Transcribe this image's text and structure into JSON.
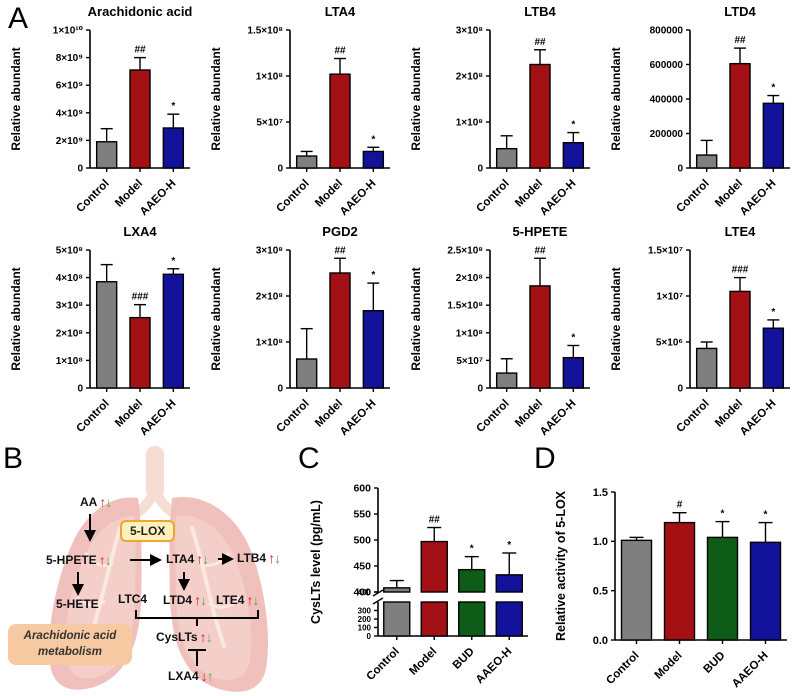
{
  "panels": {
    "a": "A",
    "b": "B",
    "c": "C",
    "d": "D"
  },
  "glyphs": {
    "up": "↑",
    "down": "↓"
  },
  "colors": {
    "control": "#7f7f7f",
    "model": "#a31114",
    "bud": "#0e5c17",
    "aaeo": "#12129b",
    "axis": "#000000",
    "trend_up_red": "#cf1f1b",
    "trend_down_green": "#5fa843",
    "lung_outer": "#efbdb9",
    "lung_inner": "#f4cfc9",
    "lung_branch": "#fae7e0",
    "trachea": "#f6dcd2",
    "enzyme_box_fill": "#fdf0bb",
    "enzyme_box_border": "#eda62e",
    "caption_box_fill": "#f7c9a2"
  },
  "chart_data": [
    {
      "type": "bar",
      "layout": "small",
      "title": "Arachidonic acid",
      "ylabel": "Relative abundant",
      "categories": [
        "Control",
        "Model",
        "AAEO-H"
      ],
      "values": [
        1900000000.0,
        7100000000.0,
        2900000000.0
      ],
      "errors": [
        950000000.0,
        900000000.0,
        1000000000.0
      ],
      "sig": [
        "",
        "##",
        "*"
      ],
      "ymax": 10000000000.0,
      "bar_colors": [
        "control",
        "model",
        "aaeo"
      ],
      "yticks": [
        {
          "v": 0,
          "label": "0"
        },
        {
          "v": 2000000000.0,
          "label": "2×10⁹"
        },
        {
          "v": 4000000000.0,
          "label": "4×10⁹"
        },
        {
          "v": 6000000000.0,
          "label": "6×10⁹"
        },
        {
          "v": 8000000000.0,
          "label": "8×10⁹"
        },
        {
          "v": 10000000000.0,
          "label": "1×10¹⁰"
        }
      ]
    },
    {
      "type": "bar",
      "layout": "small",
      "title": "LTA4",
      "ylabel": "Relative abundant",
      "categories": [
        "Control",
        "Model",
        "AAEO-H"
      ],
      "values": [
        13000000.0,
        102000000.0,
        18000000.0
      ],
      "errors": [
        5000000.0,
        17000000.0,
        4500000.0
      ],
      "sig": [
        "",
        "##",
        "*"
      ],
      "ymax": 150000000.0,
      "bar_colors": [
        "control",
        "model",
        "aaeo"
      ],
      "yticks": [
        {
          "v": 0,
          "label": "0"
        },
        {
          "v": 50000000.0,
          "label": "5×10⁷"
        },
        {
          "v": 100000000.0,
          "label": "1×10⁸"
        },
        {
          "v": 150000000.0,
          "label": "1.5×10⁸"
        }
      ]
    },
    {
      "type": "bar",
      "layout": "small",
      "title": "LTB4",
      "ylabel": "Relative abundant",
      "categories": [
        "Control",
        "Model",
        "AAEO-H"
      ],
      "values": [
        42000000.0,
        225000000.0,
        55000000.0
      ],
      "errors": [
        28000000.0,
        32000000.0,
        22000000.0
      ],
      "sig": [
        "",
        "##",
        "*"
      ],
      "ymax": 300000000.0,
      "bar_colors": [
        "control",
        "model",
        "aaeo"
      ],
      "yticks": [
        {
          "v": 0,
          "label": "0"
        },
        {
          "v": 100000000.0,
          "label": "1×10⁸"
        },
        {
          "v": 200000000.0,
          "label": "2×10⁸"
        },
        {
          "v": 300000000.0,
          "label": "3×10⁸"
        }
      ]
    },
    {
      "type": "bar",
      "layout": "small",
      "title": "LTD4",
      "ylabel": "Relative abundant",
      "categories": [
        "Control",
        "Model",
        "AAEO-H"
      ],
      "values": [
        75000,
        605000,
        375000
      ],
      "errors": [
        85000,
        90000,
        45000
      ],
      "sig": [
        "",
        "##",
        "*"
      ],
      "ymax": 800000,
      "bar_colors": [
        "control",
        "model",
        "aaeo"
      ],
      "yticks": [
        {
          "v": 0,
          "label": "0"
        },
        {
          "v": 200000,
          "label": "200000"
        },
        {
          "v": 400000,
          "label": "400000"
        },
        {
          "v": 600000,
          "label": "600000"
        },
        {
          "v": 800000,
          "label": "800000"
        }
      ]
    },
    {
      "type": "bar",
      "layout": "small",
      "title": "LXA4",
      "ylabel": "Relative abundant",
      "categories": [
        "Control",
        "Model",
        "AAEO-H"
      ],
      "values": [
        385000000.0,
        255000000.0,
        412000000.0
      ],
      "errors": [
        62000000.0,
        47000000.0,
        20000000.0
      ],
      "sig": [
        "",
        "###",
        "*"
      ],
      "ymax": 500000000.0,
      "bar_colors": [
        "control",
        "model",
        "aaeo"
      ],
      "yticks": [
        {
          "v": 0,
          "label": "0"
        },
        {
          "v": 100000000.0,
          "label": "1×10⁸"
        },
        {
          "v": 200000000.0,
          "label": "2×10⁸"
        },
        {
          "v": 300000000.0,
          "label": "3×10⁸"
        },
        {
          "v": 400000000.0,
          "label": "4×10⁸"
        },
        {
          "v": 500000000.0,
          "label": "5×10⁸"
        }
      ]
    },
    {
      "type": "bar",
      "layout": "small",
      "title": "PGD2",
      "ylabel": "Relative abundant",
      "categories": [
        "Control",
        "Model",
        "AAEO-H"
      ],
      "values": [
        63000000.0,
        250000000.0,
        168000000.0
      ],
      "errors": [
        66000000.0,
        32000000.0,
        60000000.0
      ],
      "sig": [
        "",
        "##",
        "*"
      ],
      "ymax": 300000000.0,
      "bar_colors": [
        "control",
        "model",
        "aaeo"
      ],
      "yticks": [
        {
          "v": 0,
          "label": "0"
        },
        {
          "v": 100000000.0,
          "label": "1×10⁸"
        },
        {
          "v": 200000000.0,
          "label": "2×10⁸"
        },
        {
          "v": 300000000.0,
          "label": "3×10⁸"
        }
      ]
    },
    {
      "type": "bar",
      "layout": "small",
      "title": "5-HPETE",
      "ylabel": "Relative abundant",
      "categories": [
        "Control",
        "Model",
        "AAEO-H"
      ],
      "values": [
        27000000.0,
        185000000.0,
        55000000.0
      ],
      "errors": [
        26000000.0,
        50000000.0,
        22000000.0
      ],
      "sig": [
        "",
        "##",
        "*"
      ],
      "ymax": 250000000.0,
      "bar_colors": [
        "control",
        "model",
        "aaeo"
      ],
      "yticks": [
        {
          "v": 0,
          "label": "0"
        },
        {
          "v": 50000000.0,
          "label": "5×10⁷"
        },
        {
          "v": 100000000.0,
          "label": "1×10⁸"
        },
        {
          "v": 150000000.0,
          "label": "1.5×10⁸"
        },
        {
          "v": 200000000.0,
          "label": "2×10⁸"
        },
        {
          "v": 250000000.0,
          "label": "2.5×10⁸"
        }
      ]
    },
    {
      "type": "bar",
      "layout": "small",
      "title": "LTE4",
      "ylabel": "Relative abundant",
      "categories": [
        "Control",
        "Model",
        "AAEO-H"
      ],
      "values": [
        4300000.0,
        10500000.0,
        6500000.0
      ],
      "errors": [
        700000.0,
        1500000.0,
        900000.0
      ],
      "sig": [
        "",
        "###",
        "*"
      ],
      "ymax": 15000000.0,
      "bar_colors": [
        "control",
        "model",
        "aaeo"
      ],
      "yticks": [
        {
          "v": 0,
          "label": "0"
        },
        {
          "v": 5000000.0,
          "label": "5×10⁶"
        },
        {
          "v": 10000000.0,
          "label": "1×10⁷"
        },
        {
          "v": 15000000.0,
          "label": "1.5×10⁷"
        }
      ]
    },
    {
      "type": "bar",
      "layout": "broken",
      "title": "",
      "ylabel": "CysLTs level (pg/mL)",
      "categories": [
        "Control",
        "Model",
        "BUD",
        "AAEO-H"
      ],
      "values": [
        408,
        497,
        443,
        433
      ],
      "errors": [
        14,
        27,
        25,
        42
      ],
      "sig": [
        "",
        "##",
        "*",
        "*"
      ],
      "bar_colors": [
        "control",
        "model",
        "bud",
        "aaeo"
      ],
      "upper_range": [
        400,
        600
      ],
      "lower_range": [
        0,
        400
      ],
      "yticks_upper": [
        {
          "v": 400,
          "label": "400"
        },
        {
          "v": 450,
          "label": "450"
        },
        {
          "v": 500,
          "label": "500"
        },
        {
          "v": 550,
          "label": "550"
        },
        {
          "v": 600,
          "label": "600"
        }
      ],
      "yticks_lower": [
        {
          "v": 0,
          "label": "0"
        },
        {
          "v": 100,
          "label": "100"
        },
        {
          "v": 200,
          "label": "200"
        },
        {
          "v": 300,
          "label": "300"
        },
        {
          "v": 400,
          "label": "400"
        }
      ]
    },
    {
      "type": "bar",
      "layout": "wide",
      "title": "",
      "ylabel": "Relative activity of 5-LOX",
      "categories": [
        "Control",
        "Model",
        "BUD",
        "AAEO-H"
      ],
      "values": [
        1.01,
        1.19,
        1.04,
        0.99
      ],
      "errors": [
        0.03,
        0.1,
        0.16,
        0.2
      ],
      "sig": [
        "",
        "#",
        "*",
        "*"
      ],
      "ymax": 1.5,
      "bar_colors": [
        "control",
        "model",
        "bud",
        "aaeo"
      ],
      "yticks": [
        {
          "v": 0,
          "label": "0.0"
        },
        {
          "v": 0.5,
          "label": "0.5"
        },
        {
          "v": 1.0,
          "label": "1.0"
        },
        {
          "v": 1.5,
          "label": "1.5"
        }
      ]
    }
  ],
  "diagram": {
    "enzyme": "5-LOX",
    "caption_line1": "Arachidonic acid",
    "caption_line2": "metabolism",
    "nodes": [
      {
        "label": "AA",
        "trend": "up_down"
      },
      {
        "label": "5-HPETE",
        "trend": "up_down"
      },
      {
        "label": "5-HETE",
        "trend": "none"
      },
      {
        "label": "LTA4",
        "trend": "up_down"
      },
      {
        "label": "LTB4",
        "trend": "up_down"
      },
      {
        "label": "LTC4",
        "trend": "none"
      },
      {
        "label": "LTD4",
        "trend": "up_down"
      },
      {
        "label": "LTE4",
        "trend": "up_down"
      },
      {
        "label": "CysLTs",
        "trend": "up_down"
      },
      {
        "label": "LXA4",
        "trend": "down_up"
      }
    ]
  }
}
